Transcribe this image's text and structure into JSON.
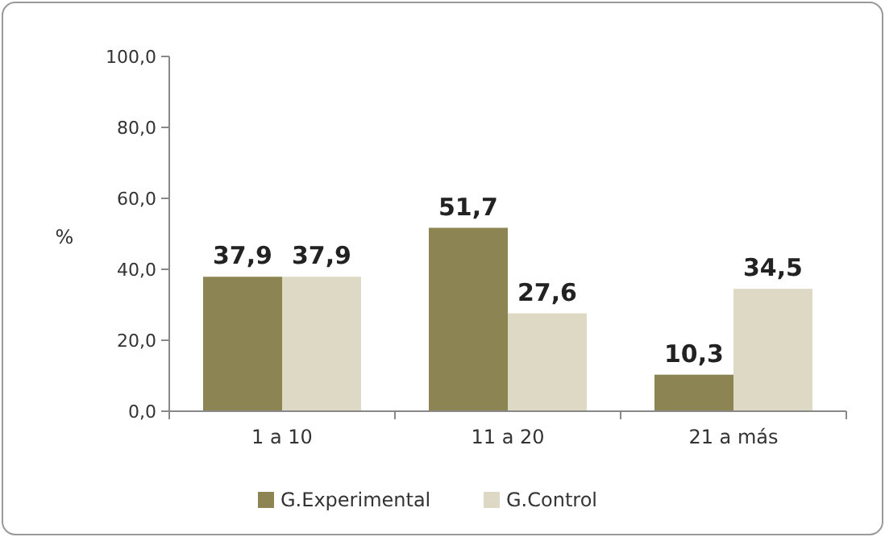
{
  "chart_data": {
    "type": "bar",
    "ylabel": "%",
    "categories": [
      "1 a 10",
      "11 a 20",
      "21 a más"
    ],
    "series": [
      {
        "name": "G.Experimental",
        "color": "#8c8553",
        "values": [
          37.9,
          51.7,
          10.3
        ],
        "value_labels": [
          "37,9",
          "51,7",
          "10,3"
        ]
      },
      {
        "name": "G.Control",
        "color": "#ddd9c4",
        "values": [
          37.9,
          27.6,
          34.5
        ],
        "value_labels": [
          "37,9",
          "27,6",
          "34,5"
        ]
      }
    ],
    "ylim": [
      0,
      100
    ],
    "yticks": [
      {
        "value": 0,
        "label": "0,0"
      },
      {
        "value": 20,
        "label": "20,0"
      },
      {
        "value": 40,
        "label": "40,0"
      },
      {
        "value": 60,
        "label": "60,0"
      },
      {
        "value": 80,
        "label": "80,0"
      },
      {
        "value": 100,
        "label": "100,0"
      }
    ],
    "grid": false,
    "legend": "bottom"
  }
}
